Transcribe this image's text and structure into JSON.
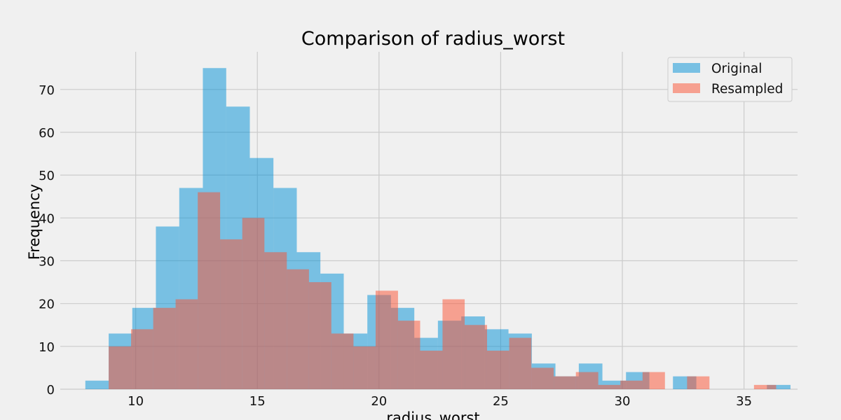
{
  "chart_data": {
    "type": "bar",
    "title": "Comparison of radius_worst",
    "xlabel": "radius_worst",
    "ylabel": "Frequency",
    "xlim": [
      6.9,
      37.2
    ],
    "ylim": [
      0,
      78.8
    ],
    "xticks": [
      10,
      15,
      20,
      25,
      30,
      35
    ],
    "yticks": [
      0,
      10,
      20,
      30,
      40,
      50,
      60,
      70
    ],
    "grid": true,
    "legend": "top-right",
    "series": [
      {
        "name": "Original",
        "color": "#008fd5",
        "alpha": 0.5,
        "bins": [
          [
            7.93,
            8.89,
            2
          ],
          [
            8.89,
            9.86,
            13
          ],
          [
            9.86,
            10.83,
            19
          ],
          [
            10.83,
            11.79,
            38
          ],
          [
            11.79,
            12.76,
            47
          ],
          [
            12.76,
            13.72,
            75
          ],
          [
            13.72,
            14.69,
            66
          ],
          [
            14.69,
            15.66,
            54
          ],
          [
            15.66,
            16.62,
            47
          ],
          [
            16.62,
            17.59,
            32
          ],
          [
            17.59,
            18.55,
            27
          ],
          [
            18.55,
            19.52,
            13
          ],
          [
            19.52,
            20.49,
            22
          ],
          [
            20.49,
            21.45,
            19
          ],
          [
            21.45,
            22.42,
            12
          ],
          [
            22.42,
            23.38,
            16
          ],
          [
            23.38,
            24.35,
            17
          ],
          [
            24.35,
            25.32,
            14
          ],
          [
            25.32,
            26.28,
            13
          ],
          [
            26.28,
            27.25,
            6
          ],
          [
            27.25,
            28.21,
            3
          ],
          [
            28.21,
            29.18,
            6
          ],
          [
            29.18,
            30.15,
            2
          ],
          [
            30.15,
            31.11,
            4
          ],
          [
            31.11,
            32.08,
            0
          ],
          [
            32.08,
            33.04,
            3
          ],
          [
            33.04,
            34.01,
            0
          ],
          [
            34.01,
            34.98,
            0
          ],
          [
            34.98,
            35.94,
            0
          ],
          [
            35.94,
            36.91,
            1
          ]
        ]
      },
      {
        "name": "Resampled",
        "color": "#fc4f30",
        "alpha": 0.5,
        "bins": [
          [
            8.89,
            9.81,
            10
          ],
          [
            9.81,
            10.72,
            14
          ],
          [
            10.72,
            11.64,
            19
          ],
          [
            11.64,
            12.55,
            21
          ],
          [
            12.55,
            13.47,
            46
          ],
          [
            13.47,
            14.38,
            35
          ],
          [
            14.38,
            15.29,
            40
          ],
          [
            15.29,
            16.21,
            32
          ],
          [
            16.21,
            17.12,
            28
          ],
          [
            17.12,
            18.04,
            25
          ],
          [
            18.04,
            18.95,
            13
          ],
          [
            18.95,
            19.86,
            10
          ],
          [
            19.86,
            20.78,
            23
          ],
          [
            20.78,
            21.69,
            16
          ],
          [
            21.69,
            22.61,
            9
          ],
          [
            22.61,
            23.52,
            21
          ],
          [
            23.52,
            24.44,
            15
          ],
          [
            24.44,
            25.35,
            9
          ],
          [
            25.35,
            26.26,
            12
          ],
          [
            26.26,
            27.18,
            5
          ],
          [
            27.18,
            28.09,
            3
          ],
          [
            28.09,
            29.01,
            4
          ],
          [
            29.01,
            29.92,
            1
          ],
          [
            29.92,
            30.83,
            2
          ],
          [
            30.83,
            31.75,
            4
          ],
          [
            31.75,
            32.66,
            0
          ],
          [
            32.66,
            33.58,
            3
          ],
          [
            33.58,
            34.49,
            0
          ],
          [
            34.49,
            35.41,
            0
          ],
          [
            35.41,
            36.32,
            1
          ]
        ]
      }
    ]
  }
}
